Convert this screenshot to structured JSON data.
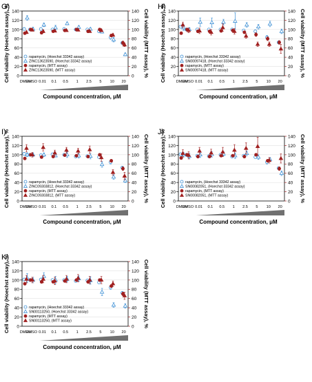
{
  "figure": {
    "common": {
      "x_title": "Compound concentration, μM",
      "y_left_title": "Cell viability (Hoechst assay), %",
      "y_right_title": "Cell viability (MTT assay), %",
      "colors": {
        "hoechst": "#3c8fd4",
        "mtt": "#a02020",
        "triangle_bar": "#707070"
      }
    }
  },
  "chart_data": [
    {
      "panel_label": "G)",
      "type": "scatter",
      "categories": [
        "DMEM",
        "DMSO",
        "0.01",
        "0.1",
        "0.5",
        "1",
        "2.5",
        "5",
        "10",
        "20"
      ],
      "xlabel": "Compound concentration, μM",
      "ylabel": "Cell viability (Hoechst assay), %",
      "y2label": "Cell viability (MTT assay), %",
      "ylim": [
        0,
        140
      ],
      "yticks": [
        0,
        20,
        40,
        60,
        80,
        100,
        120,
        140
      ],
      "legend_position": "bottom-left",
      "series": [
        {
          "name": "rapamycin, (Hoechst 33342 assay)",
          "marker": "circle-open",
          "color": "#3c8fd4",
          "values": [
            101,
            100,
            101,
            100,
            101,
            100,
            100,
            96,
            83,
            71
          ],
          "errors": [
            3,
            2,
            2,
            2,
            2,
            2,
            2,
            3,
            4,
            3
          ]
        },
        {
          "name": "ZINC13623590, (Hoechst 33342 assay)",
          "marker": "triangle-open",
          "color": "#3c8fd4",
          "values": [
            125,
            101,
            110,
            104,
            113,
            105,
            101,
            95,
            78,
            46
          ],
          "errors": [
            5,
            4,
            4,
            5,
            3,
            3,
            3,
            3,
            5,
            3
          ]
        },
        {
          "name": "rapamycin, (MTT assay)",
          "marker": "circle-filled",
          "color": "#a02020",
          "values": [
            92,
            100,
            93,
            96,
            98,
            100,
            96,
            100,
            87,
            71
          ],
          "errors": [
            3,
            2,
            3,
            2,
            2,
            2,
            3,
            3,
            3,
            4
          ]
        },
        {
          "name": "ZINC13623590, (MTT assay)",
          "marker": "triangle-filled",
          "color": "#a02020",
          "values": [
            94,
            99,
            96,
            97,
            98,
            99,
            96,
            98,
            88,
            67
          ],
          "errors": [
            3,
            2,
            3,
            2,
            2,
            2,
            2,
            3,
            3,
            4
          ]
        }
      ]
    },
    {
      "panel_label": "H)",
      "type": "scatter",
      "categories": [
        "DMEM",
        "DMSO",
        "0.01",
        "0.1",
        "0.5",
        "1",
        "2.5",
        "5",
        "10",
        "20"
      ],
      "xlabel": "Compound concentration, μM",
      "ylabel": "Cell viability (Hoechst assay), %",
      "y2label": "Cell viability (MTT assay), %",
      "ylim": [
        0,
        140
      ],
      "yticks": [
        0,
        20,
        40,
        60,
        80,
        100,
        120,
        140
      ],
      "legend_position": "bottom-left",
      "series": [
        {
          "name": "rapamycin, (Hoechst 33342 assay)",
          "marker": "circle-open",
          "color": "#3c8fd4",
          "values": [
            106,
            100,
            100,
            100,
            100,
            100,
            98,
            96,
            83,
            72
          ],
          "errors": [
            3,
            3,
            3,
            2,
            2,
            2,
            2,
            3,
            4,
            3
          ]
        },
        {
          "name": "SN00097418, (Hoechst 33342 assay)",
          "marker": "triangle-open",
          "color": "#3c8fd4",
          "values": [
            104,
            100,
            116,
            115,
            116,
            118,
            110,
            106,
            112,
            96
          ],
          "errors": [
            6,
            4,
            9,
            10,
            6,
            18,
            5,
            5,
            6,
            5
          ]
        },
        {
          "name": "rapamycin, (MTT assay)",
          "marker": "circle-filled",
          "color": "#a02020",
          "values": [
            92,
            100,
            96,
            96,
            97,
            98,
            94,
            89,
            80,
            72
          ],
          "errors": [
            3,
            3,
            3,
            2,
            3,
            3,
            3,
            4,
            4,
            4
          ]
        },
        {
          "name": "SN00097418, (MTT assay)",
          "marker": "triangle-filled",
          "color": "#a02020",
          "values": [
            110,
            98,
            97,
            94,
            104,
            96,
            86,
            68,
            68,
            58
          ],
          "errors": [
            6,
            5,
            6,
            6,
            8,
            6,
            5,
            5,
            5,
            10
          ]
        }
      ]
    },
    {
      "panel_label": "I)",
      "type": "scatter",
      "categories": [
        "DMEM",
        "DMSO",
        "0.01",
        "0.1",
        "0.5",
        "1",
        "2.5",
        "5",
        "10",
        "20"
      ],
      "xlabel": "Compound concentration, μM",
      "ylabel": "Cell viability (Hoechst assay), %",
      "y2label": "Cell viability (MTT assay), %",
      "ylim": [
        0,
        140
      ],
      "yticks": [
        0,
        20,
        40,
        60,
        80,
        100,
        120,
        140
      ],
      "legend_position": "bottom-left",
      "series": [
        {
          "name": "rapamycin, (Hoechst 33342 assay)",
          "marker": "circle-open",
          "color": "#3c8fd4",
          "values": [
            102,
            100,
            99,
            101,
            100,
            96,
            97,
            95,
            84,
            72
          ],
          "errors": [
            3,
            3,
            2,
            2,
            2,
            2,
            2,
            3,
            4,
            3
          ]
        },
        {
          "name": "ZINC09303812, (Hoechst 33342 assay)",
          "marker": "triangle-open",
          "color": "#3c8fd4",
          "values": [
            100,
            100,
            100,
            98,
            100,
            98,
            97,
            79,
            52,
            44
          ],
          "errors": [
            4,
            4,
            4,
            3,
            6,
            5,
            6,
            6,
            5,
            4
          ]
        },
        {
          "name": "rapamycin, (MTT assay)",
          "marker": "circle-filled",
          "color": "#a02020",
          "values": [
            92,
            100,
            95,
            96,
            99,
            98,
            96,
            100,
            87,
            70
          ],
          "errors": [
            3,
            2,
            3,
            2,
            2,
            2,
            3,
            3,
            3,
            4
          ]
        },
        {
          "name": "ZINC09303812, (MTT assay)",
          "marker": "triangle-filled",
          "color": "#a02020",
          "values": [
            114,
            100,
            116,
            104,
            110,
            108,
            111,
            94,
            62,
            54
          ],
          "errors": [
            8,
            5,
            8,
            6,
            6,
            6,
            8,
            8,
            6,
            8
          ]
        }
      ]
    },
    {
      "panel_label": "J)",
      "type": "scatter",
      "categories": [
        "DMEM",
        "DMSO",
        "0.01",
        "0.1",
        "0.5",
        "1",
        "2.5",
        "5",
        "10",
        "20"
      ],
      "xlabel": "Compound concentration, μM",
      "ylabel": "Cell viability (Hoechst assay), %",
      "y2label": "Cell viability (MTT assay), %",
      "ylim": [
        0,
        140
      ],
      "yticks": [
        0,
        20,
        40,
        60,
        80,
        100,
        120,
        140
      ],
      "legend_position": "bottom-left",
      "series": [
        {
          "name": "rapamycin, (Hoechst 33342 assay)",
          "marker": "circle-open",
          "color": "#3c8fd4",
          "values": [
            101,
            100,
            98,
            97,
            100,
            96,
            98,
            95,
            84,
            71
          ],
          "errors": [
            3,
            3,
            2,
            2,
            2,
            2,
            2,
            3,
            4,
            3
          ]
        },
        {
          "name": "SN00082051, (Hoechst 33342 assay)",
          "marker": "triangle-open",
          "color": "#3c8fd4",
          "values": [
            100,
            97,
            100,
            101,
            102,
            98,
            103,
            95,
            90,
            60
          ],
          "errors": [
            5,
            6,
            6,
            6,
            5,
            6,
            5,
            5,
            4,
            5
          ]
        },
        {
          "name": "rapamycin, (MTT assay)",
          "marker": "circle-filled",
          "color": "#a02020",
          "values": [
            93,
            100,
            96,
            96,
            98,
            98,
            96,
            100,
            87,
            70
          ],
          "errors": [
            3,
            2,
            3,
            2,
            2,
            2,
            3,
            3,
            3,
            4
          ]
        },
        {
          "name": "SN00082051, (MTT assay)",
          "marker": "triangle-filled",
          "color": "#a02020",
          "values": [
            103,
            99,
            108,
            104,
            106,
            110,
            114,
            118,
            88,
            92
          ],
          "errors": [
            8,
            8,
            8,
            8,
            10,
            12,
            12,
            20,
            6,
            10
          ]
        }
      ]
    },
    {
      "panel_label": "K)",
      "type": "scatter",
      "categories": [
        "DMEM",
        "DMSO",
        "0.01",
        "0.1",
        "0.5",
        "1",
        "2.5",
        "5",
        "10",
        "20"
      ],
      "xlabel": "Compound concentration, μM",
      "ylabel": "Cell viability (Hoechst assay), %",
      "y2label": "Cell viability (MTT assay), %",
      "ylim": [
        0,
        140
      ],
      "yticks": [
        0,
        20,
        40,
        60,
        80,
        100,
        120,
        140
      ],
      "legend_position": "bottom-left",
      "series": [
        {
          "name": "rapamycin, (Hoechst 33342 assay)",
          "marker": "circle-open",
          "color": "#3c8fd4",
          "values": [
            101,
            100,
            101,
            100,
            100,
            98,
            99,
            95,
            84,
            72
          ],
          "errors": [
            3,
            3,
            2,
            2,
            2,
            2,
            2,
            3,
            4,
            3
          ]
        },
        {
          "name": "SN00113250, (Hoechst 33342 assay)",
          "marker": "triangle-open",
          "color": "#3c8fd4",
          "values": [
            104,
            100,
            108,
            100,
            102,
            103,
            99,
            74,
            46,
            44
          ],
          "errors": [
            10,
            6,
            8,
            8,
            6,
            6,
            8,
            8,
            5,
            5
          ]
        },
        {
          "name": "rapamycin, (MTT assay)",
          "marker": "circle-filled",
          "color": "#a02020",
          "values": [
            92,
            100,
            96,
            96,
            98,
            100,
            96,
            100,
            87,
            70
          ],
          "errors": [
            3,
            2,
            3,
            2,
            2,
            2,
            3,
            3,
            3,
            4
          ]
        },
        {
          "name": "SN00113250, (MTT assay)",
          "marker": "triangle-filled",
          "color": "#a02020",
          "values": [
            102,
            100,
            102,
            98,
            102,
            104,
            100,
            100,
            92,
            66
          ],
          "errors": [
            8,
            6,
            8,
            8,
            8,
            8,
            8,
            8,
            6,
            8
          ]
        }
      ]
    }
  ]
}
